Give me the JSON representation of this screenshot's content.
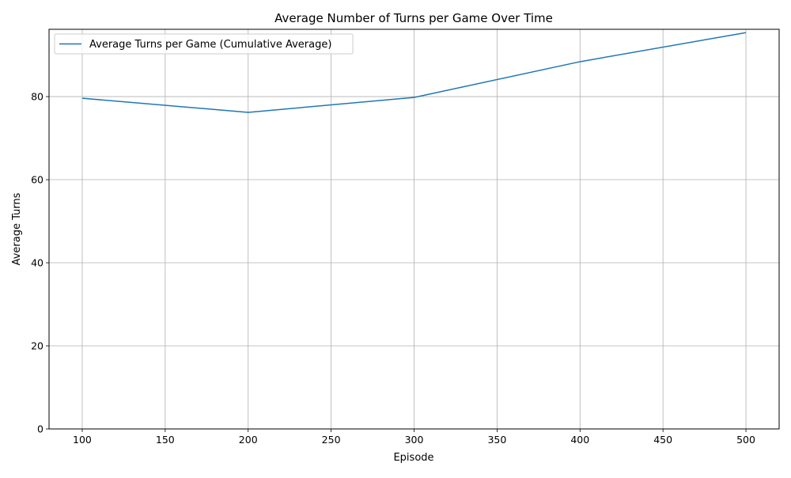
{
  "chart_data": {
    "type": "line",
    "title": "Average Number of Turns per Game Over Time",
    "xlabel": "Episode",
    "ylabel": "Average Turns",
    "xlim": [
      80,
      520
    ],
    "ylim": [
      0,
      96.2
    ],
    "xticks": [
      100,
      150,
      200,
      250,
      300,
      350,
      400,
      450,
      500
    ],
    "yticks": [
      0,
      20,
      40,
      60,
      80
    ],
    "grid": true,
    "legend_position": "upper-left",
    "series": [
      {
        "name": "Average Turns per Game (Cumulative Average)",
        "color": "#1f77b4",
        "x": [
          100,
          200,
          300,
          400,
          500
        ],
        "y": [
          79.6,
          76.2,
          79.8,
          88.4,
          95.4
        ]
      }
    ]
  }
}
